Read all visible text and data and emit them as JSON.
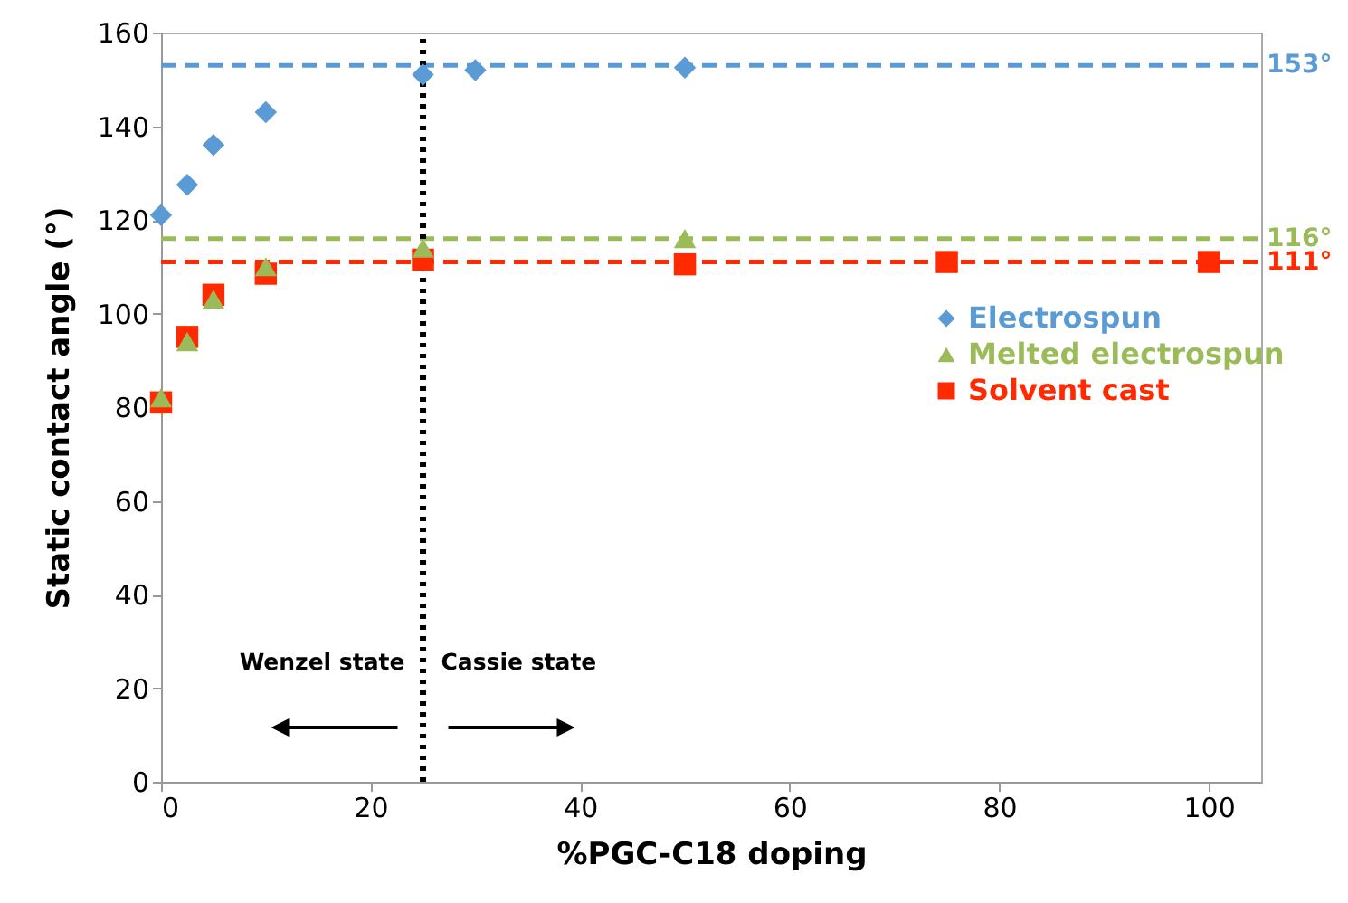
{
  "chart_data": {
    "type": "scatter",
    "xlabel": "%PGC-C18 doping",
    "ylabel": "Static contact angle (°)",
    "xlim": [
      0,
      105
    ],
    "xticks": [
      0,
      20,
      40,
      60,
      80,
      100
    ],
    "ylim": [
      0,
      160
    ],
    "yticks": [
      0,
      20,
      40,
      60,
      80,
      100,
      120,
      140,
      160
    ],
    "grid": false,
    "legend": "right",
    "series": [
      {
        "name": "Electrospun",
        "color": "#5b9bd5",
        "marker": "diamond",
        "x": [
          0,
          2.5,
          5,
          10,
          25,
          30,
          50
        ],
        "values": [
          121,
          127.5,
          136,
          143,
          151,
          152,
          152.5
        ]
      },
      {
        "name": "Melted electrospun",
        "color": "#9bbb59",
        "marker": "triangle",
        "x": [
          0,
          2.5,
          5,
          10,
          25,
          50
        ],
        "values": [
          82,
          94,
          103,
          110,
          114,
          116
        ]
      },
      {
        "name": "Solvent cast",
        "color": "#ff2a00",
        "marker": "square",
        "x": [
          0,
          2.5,
          5,
          10,
          25,
          50,
          75,
          100
        ],
        "values": [
          81,
          95,
          104,
          108.5,
          111.5,
          110.5,
          111,
          111
        ]
      }
    ],
    "ref_lines": [
      {
        "axis": "y",
        "value": 153,
        "label": "153°",
        "color": "#5b9bd5",
        "line_style": "dashed"
      },
      {
        "axis": "y",
        "value": 116,
        "label": "116°",
        "color": "#9bbb59",
        "line_style": "dashed"
      },
      {
        "axis": "y",
        "value": 111,
        "label": "111°",
        "color": "#ff2a00",
        "line_style": "dashed"
      },
      {
        "axis": "x",
        "value": 25,
        "color": "#000000",
        "line_style": "dotted"
      }
    ],
    "annotations": [
      "Wenzel state",
      "Cassie state"
    ]
  }
}
